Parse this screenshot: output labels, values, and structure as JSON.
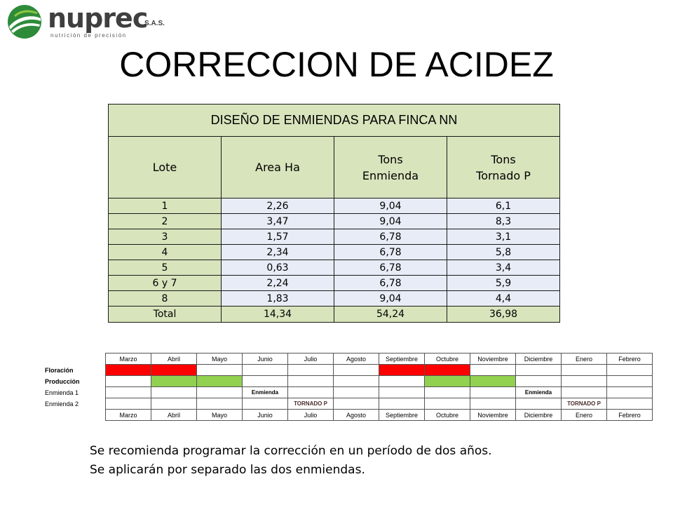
{
  "logo": {
    "wordmark": "nuprec",
    "suffix": "S.A.S.",
    "tagline": "nutrición de precisión",
    "colors": {
      "green_dark": "#2e8b3a",
      "green_light": "#8dc63f",
      "text": "#3f3f3f"
    }
  },
  "title": "CORRECCION DE ACIDEZ",
  "table": {
    "caption": "DISEÑO DE ENMIENDAS PARA FINCA NN",
    "headers": [
      "Lote",
      "Area Ha",
      "Tons\nEnmienda",
      "Tons\nTornado P"
    ],
    "rows": [
      [
        "1",
        "2,26",
        "9,04",
        "6,1"
      ],
      [
        "2",
        "3,47",
        "9,04",
        "8,3"
      ],
      [
        "3",
        "1,57",
        "6,78",
        "3,1"
      ],
      [
        "4",
        "2,34",
        "6,78",
        "5,8"
      ],
      [
        "5",
        "0,63",
        "6,78",
        "3,4"
      ],
      [
        "6 y 7",
        "2,24",
        "6,78",
        "5,9"
      ],
      [
        "8",
        "1,83",
        "9,04",
        "4,4"
      ]
    ],
    "total": [
      "Total",
      "14,34",
      "54,24",
      "36,98"
    ],
    "colors": {
      "header_bg": "#d8e4bc",
      "value_bg": "#e7ecf6"
    }
  },
  "calendar": {
    "months": [
      "Marzo",
      "Abril",
      "Mayo",
      "Junio",
      "Julio",
      "Agosto",
      "Septiembre",
      "Octubre",
      "Noviembre",
      "Diciembre",
      "Enero",
      "Febrero"
    ],
    "rows": [
      {
        "label": "Floración",
        "bold": true,
        "cells": [
          "red",
          "red",
          "",
          "",
          "",
          "",
          "red",
          "red",
          "",
          "",
          "",
          ""
        ]
      },
      {
        "label": "Producción",
        "bold": true,
        "cells": [
          "",
          "green",
          "green",
          "",
          "",
          "",
          "",
          "green",
          "green",
          "",
          "",
          ""
        ]
      },
      {
        "label": "Enmienda 1",
        "bold": false,
        "cells": [
          "",
          "",
          "",
          "Enmienda",
          "",
          "",
          "",
          "",
          "",
          "Enmienda",
          "",
          ""
        ]
      },
      {
        "label": "Enmienda 2",
        "bold": false,
        "cells": [
          "",
          "",
          "",
          "",
          "TORNADO P",
          "",
          "",
          "",
          "",
          "",
          "TORNADO P",
          ""
        ]
      }
    ],
    "colors": {
      "floracion": "#ff0000",
      "produccion": "#92d050"
    }
  },
  "notes": [
    "Se recomienda programar la corrección en un período de dos años.",
    "Se aplicarán por separado las dos enmiendas."
  ]
}
